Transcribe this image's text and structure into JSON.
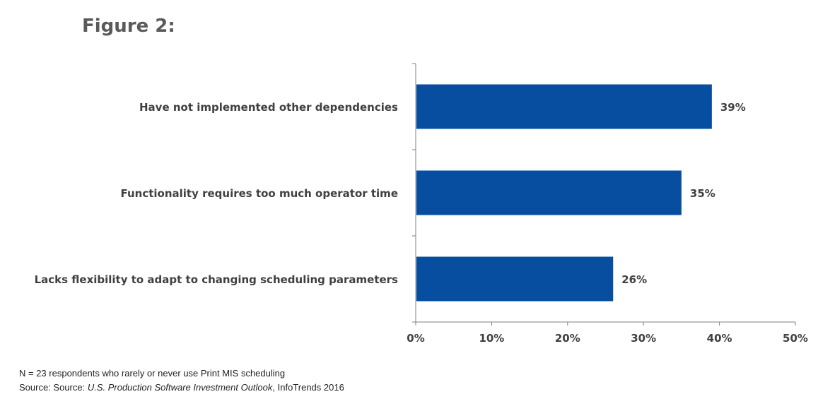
{
  "figure_title": "Figure 2:",
  "chart_data": {
    "type": "bar",
    "orientation": "horizontal",
    "categories": [
      "Have not implemented other dependencies",
      "Functionality requires too much operator time",
      "Lacks flexibility to adapt to changing scheduling parameters"
    ],
    "values": [
      39,
      35,
      26
    ],
    "value_labels": [
      "39%",
      "35%",
      "26%"
    ],
    "xlim": [
      0,
      50
    ],
    "xticks": [
      0,
      10,
      20,
      30,
      40,
      50
    ],
    "xtick_labels": [
      "0%",
      "10%",
      "20%",
      "30%",
      "40%",
      "50%"
    ],
    "bar_color": "#074EA0",
    "grid": false,
    "legend": "none"
  },
  "footnotes": {
    "line1": "N = 23 respondents who rarely or never use Print MIS scheduling",
    "line2_prefix": "Source: Source: ",
    "line2_italic": "U.S. Production Software Investment Outlook",
    "line2_suffix": ", InfoTrends 2016"
  }
}
